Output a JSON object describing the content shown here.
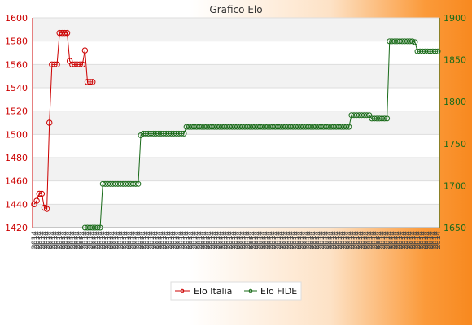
{
  "chart_data": {
    "type": "line",
    "title": "Grafico Elo",
    "xlabel": "",
    "ylabel_left": "",
    "ylabel_right": "",
    "y_left": {
      "ticks": [
        1420,
        1440,
        1460,
        1480,
        1500,
        1520,
        1540,
        1560,
        1580,
        1600
      ],
      "lim": [
        1420,
        1600
      ],
      "color": "#cc0000"
    },
    "y_right": {
      "ticks": [
        1650,
        1700,
        1750,
        1800,
        1850,
        1900
      ],
      "lim": [
        1650,
        1900
      ],
      "color": "#1a6b1a"
    },
    "grid": true,
    "legend_position": "bottom",
    "x_tick_label_sample": "2014",
    "x_count": 160,
    "series": [
      {
        "name": "Elo Italia",
        "axis": "left",
        "color": "#cc0000",
        "x": [
          0,
          1,
          2,
          3,
          4,
          5,
          6,
          7,
          8,
          9,
          10,
          11,
          12,
          13,
          14,
          15,
          16,
          17,
          18,
          19,
          20,
          21,
          22,
          23
        ],
        "values": [
          1440,
          1443,
          1449,
          1449,
          1437,
          1436,
          1510,
          1560,
          1560,
          1560,
          1587,
          1587,
          1587,
          1587,
          1563,
          1560,
          1560,
          1560,
          1560,
          1560,
          1572,
          1545,
          1545,
          1545
        ]
      },
      {
        "name": "Elo FIDE",
        "axis": "right",
        "color": "#1a6b1a",
        "segments": [
          {
            "x_start": 20,
            "x_end": 26,
            "value": 1650
          },
          {
            "x_start": 27,
            "x_end": 41,
            "value": 1702
          },
          {
            "x_start": 42,
            "x_end": 42,
            "value": 1760
          },
          {
            "x_start": 43,
            "x_end": 42,
            "value": 1745
          },
          {
            "x_start": 43,
            "x_end": 59,
            "value": 1762
          },
          {
            "x_start": 60,
            "x_end": 124,
            "value": 1770
          },
          {
            "x_start": 125,
            "x_end": 132,
            "value": 1784
          },
          {
            "x_start": 133,
            "x_end": 139,
            "value": 1780
          },
          {
            "x_start": 140,
            "x_end": 149,
            "value": 1872
          },
          {
            "x_start": 150,
            "x_end": 150,
            "value": 1871
          },
          {
            "x_start": 151,
            "x_end": 159,
            "value": 1860
          }
        ]
      }
    ]
  }
}
